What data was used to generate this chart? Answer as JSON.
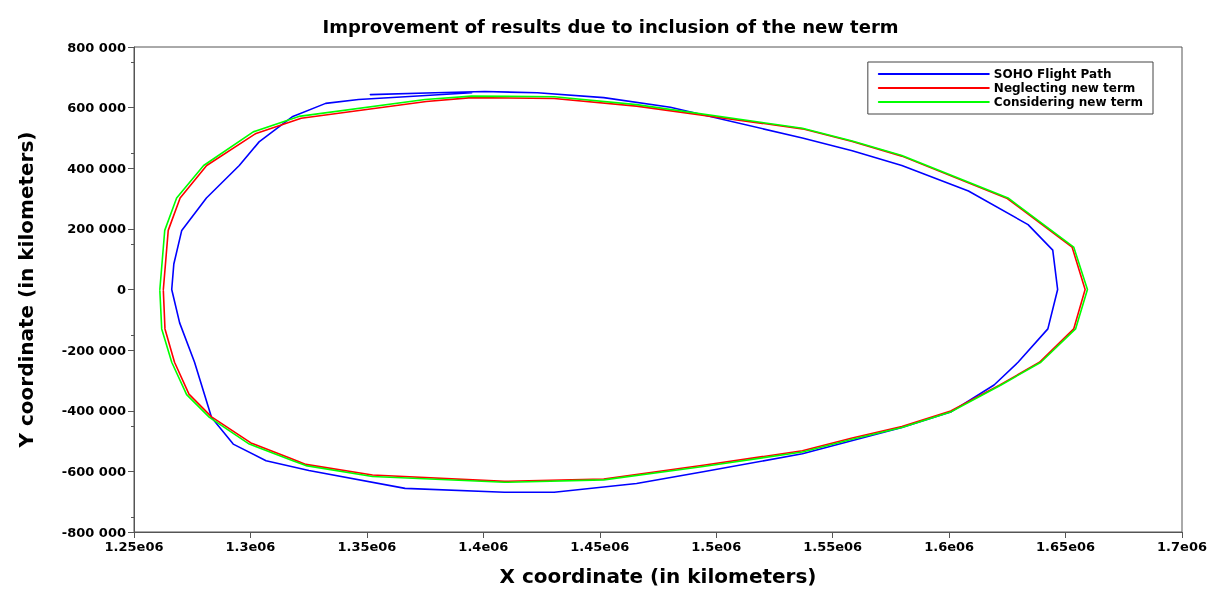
{
  "chart_data": {
    "type": "line",
    "title": "Improvement of results due to inclusion of the new term",
    "xlabel": "X coordinate (in kilometers)",
    "ylabel": "Y coordinate (in kilometers)",
    "xlim": [
      1250000,
      1700000
    ],
    "ylim": [
      -800000,
      800000
    ],
    "xticks": [
      {
        "value": 1250000,
        "label": "1.25e06"
      },
      {
        "value": 1300000,
        "label": "1.3e06"
      },
      {
        "value": 1350000,
        "label": "1.35e06"
      },
      {
        "value": 1400000,
        "label": "1.4e06"
      },
      {
        "value": 1450000,
        "label": "1.45e06"
      },
      {
        "value": 1500000,
        "label": "1.5e06"
      },
      {
        "value": 1550000,
        "label": "1.55e06"
      },
      {
        "value": 1600000,
        "label": "1.6e06"
      },
      {
        "value": 1650000,
        "label": "1.65e06"
      },
      {
        "value": 1700000,
        "label": "1.7e06"
      }
    ],
    "yticks": [
      {
        "value": -800000,
        "label": "-800 000"
      },
      {
        "value": -600000,
        "label": "-600 000"
      },
      {
        "value": -400000,
        "label": "-400 000"
      },
      {
        "value": -200000,
        "label": "-200 000"
      },
      0,
      {
        "value": 200000,
        "label": "200 000"
      },
      {
        "value": 400000,
        "label": "400 000"
      },
      {
        "value": 600000,
        "label": "600 000"
      },
      {
        "value": 800000,
        "label": "800 000"
      }
    ],
    "grid": false,
    "legend": "top right",
    "marker": "none",
    "line_style": "solid",
    "series": [
      {
        "name": "SOHO Flight Path",
        "color": "#0000ff",
        "x": [
          1351500,
          1379200,
          1400600,
          1423200,
          1451700,
          1480300,
          1537000,
          1558400,
          1579700,
          1608300,
          1633900,
          1644500,
          1646600,
          1642400,
          1629600,
          1619300,
          1601000,
          1579700,
          1537000,
          1494400,
          1465800,
          1430400,
          1409100,
          1366400,
          1325100,
          1306700,
          1292600,
          1283300,
          1280300,
          1276000,
          1269600,
          1266200,
          1267100,
          1270500,
          1281100,
          1295200,
          1303700,
          1318200,
          1332300,
          1346400,
          1366400,
          1395000
        ],
        "values": [
          643000,
          649000,
          653000,
          649000,
          633000,
          601000,
          500000,
          458000,
          409000,
          325000,
          214000,
          130000,
          0,
          -130000,
          -240000,
          -315000,
          -403000,
          -455000,
          -542000,
          -601000,
          -640000,
          -669000,
          -669000,
          -656000,
          -597000,
          -565000,
          -510000,
          -422000,
          -347000,
          -240000,
          -110000,
          0,
          84000,
          195000,
          302000,
          409000,
          487000,
          571000,
          614000,
          627000,
          636000,
          649000
        ]
      },
      {
        "name": "Neglecting new term",
        "color": "#ff0000",
        "x": [
          1262600,
          1264700,
          1269800,
          1281200,
          1302400,
          1321800,
          1375500,
          1395000,
          1430400,
          1465800,
          1537000,
          1558400,
          1579700,
          1625000,
          1652800,
          1658400,
          1653500,
          1638800,
          1621800,
          1600700,
          1579700,
          1558400,
          1537000,
          1494400,
          1451700,
          1409100,
          1352400,
          1323800,
          1318500,
          1300200,
          1283300,
          1273600,
          1267400,
          1263300,
          1262600
        ],
        "values": [
          0,
          195000,
          302000,
          409000,
          515000,
          565000,
          620000,
          633000,
          630000,
          605000,
          530000,
          488000,
          440000,
          300000,
          140000,
          0,
          -130000,
          -240000,
          -315000,
          -401000,
          -452000,
          -490000,
          -532000,
          -580000,
          -625000,
          -633000,
          -612000,
          -577000,
          -561000,
          -506000,
          -420000,
          -345000,
          -240000,
          -130000,
          -4000
        ]
      },
      {
        "name": "Considering new term",
        "color": "#00ff00",
        "x": [
          1261100,
          1263200,
          1268300,
          1279900,
          1301200,
          1320800,
          1375000,
          1395000,
          1430400,
          1465800,
          1537000,
          1558400,
          1579700,
          1625300,
          1653500,
          1659400,
          1654300,
          1639400,
          1622300,
          1601000,
          1579700,
          1558400,
          1537000,
          1494400,
          1451700,
          1409100,
          1352400,
          1323800,
          1318200,
          1299500,
          1282400,
          1272600,
          1266200,
          1261900,
          1261100
        ],
        "values": [
          0,
          195000,
          302000,
          409000,
          520000,
          571000,
          627000,
          638000,
          636000,
          610000,
          532000,
          490000,
          442000,
          302000,
          140000,
          0,
          -130000,
          -240000,
          -315000,
          -403000,
          -455000,
          -494000,
          -536000,
          -584000,
          -628000,
          -636000,
          -617000,
          -581000,
          -565000,
          -510000,
          -422000,
          -347000,
          -240000,
          -130000,
          -4000
        ]
      }
    ]
  }
}
